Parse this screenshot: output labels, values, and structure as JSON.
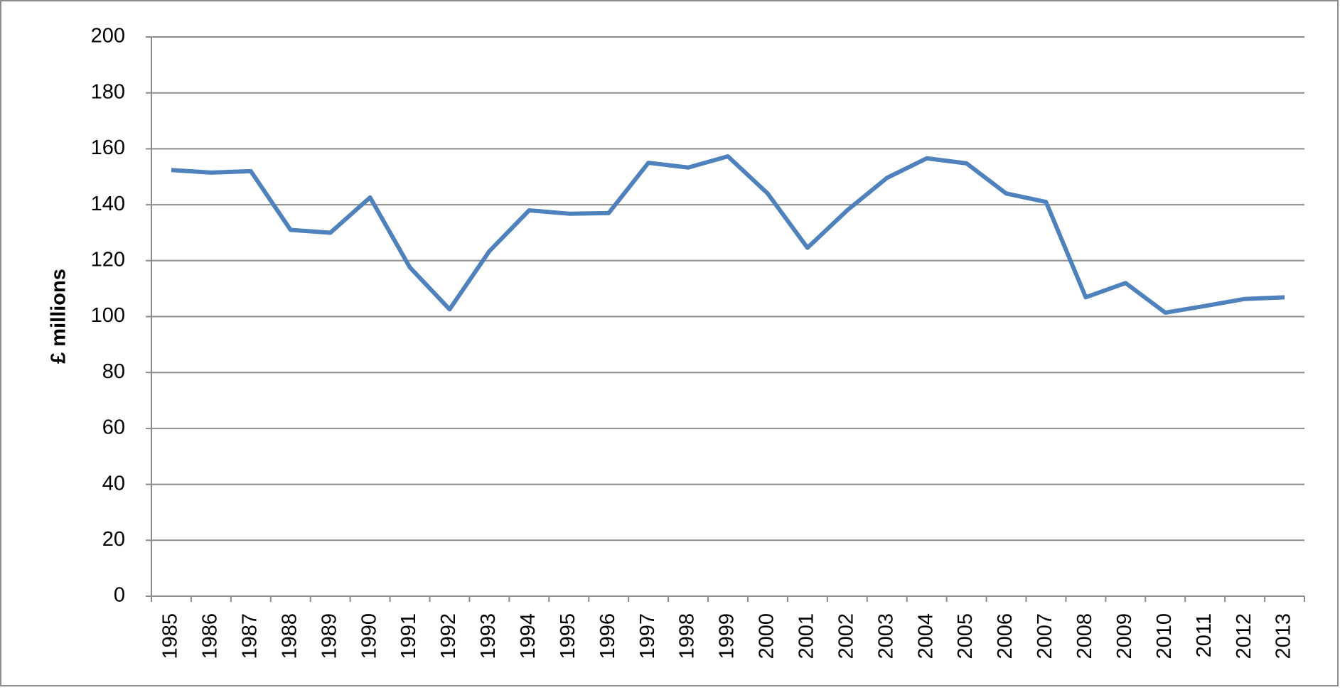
{
  "chart_data": {
    "type": "line",
    "y_label": "£ millions",
    "categories": [
      "1985",
      "1986",
      "1987",
      "1988",
      "1989",
      "1990",
      "1991",
      "1992",
      "1993",
      "1994",
      "1995",
      "1996",
      "1997",
      "1998",
      "1999",
      "2000",
      "2001",
      "2002",
      "2003",
      "2004",
      "2005",
      "2006",
      "2007",
      "2008",
      "2009",
      "2010",
      "2011",
      "2012",
      "2013"
    ],
    "values": [
      152.4,
      151.5,
      152,
      131,
      130,
      142.6,
      117.6,
      102.6,
      123.4,
      138,
      136.8,
      137,
      155,
      153.3,
      157.3,
      144,
      124.6,
      138,
      149.6,
      156.6,
      154.8,
      144,
      141,
      106.9,
      112,
      101.4,
      103.8,
      106.3,
      106.9
    ],
    "color": "#4f81bd",
    "ylim": [
      0,
      200
    ],
    "yticks": [
      0,
      20,
      40,
      60,
      80,
      100,
      120,
      140,
      160,
      180,
      200
    ],
    "grid": true
  }
}
